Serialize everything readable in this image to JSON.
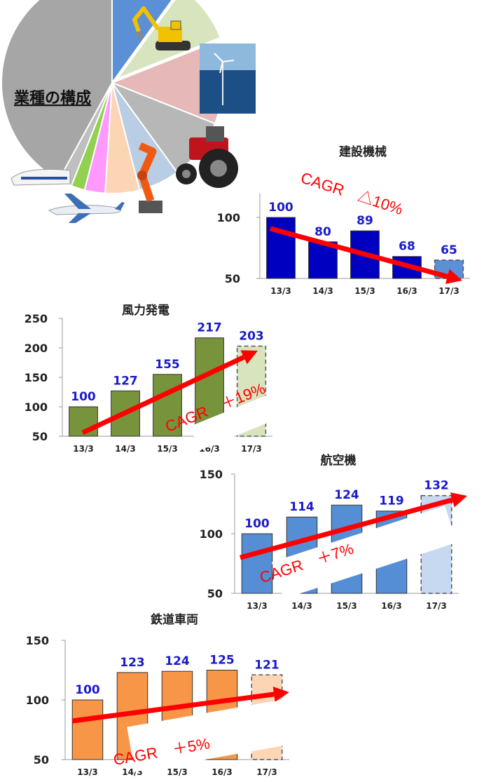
{
  "pie": {
    "title": "業種の構成",
    "slices": [
      {
        "color": "#5b8fd6",
        "value": 10
      },
      {
        "color": "#d7e4bd",
        "value": 9
      },
      {
        "color": "#e6b9b8",
        "value": 12
      },
      {
        "color": "#b7b7b7",
        "value": 9
      },
      {
        "color": "#b9cde5",
        "value": 6
      },
      {
        "color": "#fcd5b5",
        "value": 5
      },
      {
        "color": "#ff99ff",
        "value": 3
      },
      {
        "color": "#92d050",
        "value": 2
      },
      {
        "color": "#bfbfbf",
        "value": 2
      },
      {
        "color": "#a6a6a6",
        "value": 42
      }
    ]
  },
  "chart_data": [
    {
      "type": "bar",
      "title": "建設機械",
      "categories": [
        "13/3",
        "14/3",
        "15/3",
        "16/3",
        "17/3"
      ],
      "values": [
        100,
        80,
        89,
        68,
        65
      ],
      "ylim": [
        50,
        120
      ],
      "yticks": [
        50,
        100
      ],
      "color": "#0000c0",
      "forecast_color": "#5b8fd6",
      "annotation": "CAGR　△10%"
    },
    {
      "type": "bar",
      "title": "風力発電",
      "categories": [
        "13/3",
        "14/3",
        "15/3",
        "16/3",
        "17/3"
      ],
      "values": [
        100,
        127,
        155,
        217,
        203
      ],
      "ylim": [
        50,
        250
      ],
      "yticks": [
        50,
        100,
        150,
        200,
        250
      ],
      "color": "#77933c",
      "forecast_color": "#d7e4bd",
      "annotation": "CAGR　＋19%"
    },
    {
      "type": "bar",
      "title": "航空機",
      "categories": [
        "13/3",
        "14/3",
        "15/3",
        "16/3",
        "17/3"
      ],
      "values": [
        100,
        114,
        124,
        119,
        132
      ],
      "ylim": [
        50,
        150
      ],
      "yticks": [
        50,
        100,
        150
      ],
      "color": "#558ed5",
      "forecast_color": "#c6d9f1",
      "annotation": "CAGR　＋7%"
    },
    {
      "type": "bar",
      "title": "鉄道車両",
      "categories": [
        "13/3",
        "14/3",
        "15/3",
        "16/3",
        "17/3"
      ],
      "values": [
        100,
        123,
        124,
        125,
        121
      ],
      "ylim": [
        50,
        150
      ],
      "yticks": [
        50,
        100,
        150
      ],
      "color": "#f79646",
      "forecast_color": "#fcd5b5",
      "annotation": "CAGR　＋5%"
    }
  ]
}
